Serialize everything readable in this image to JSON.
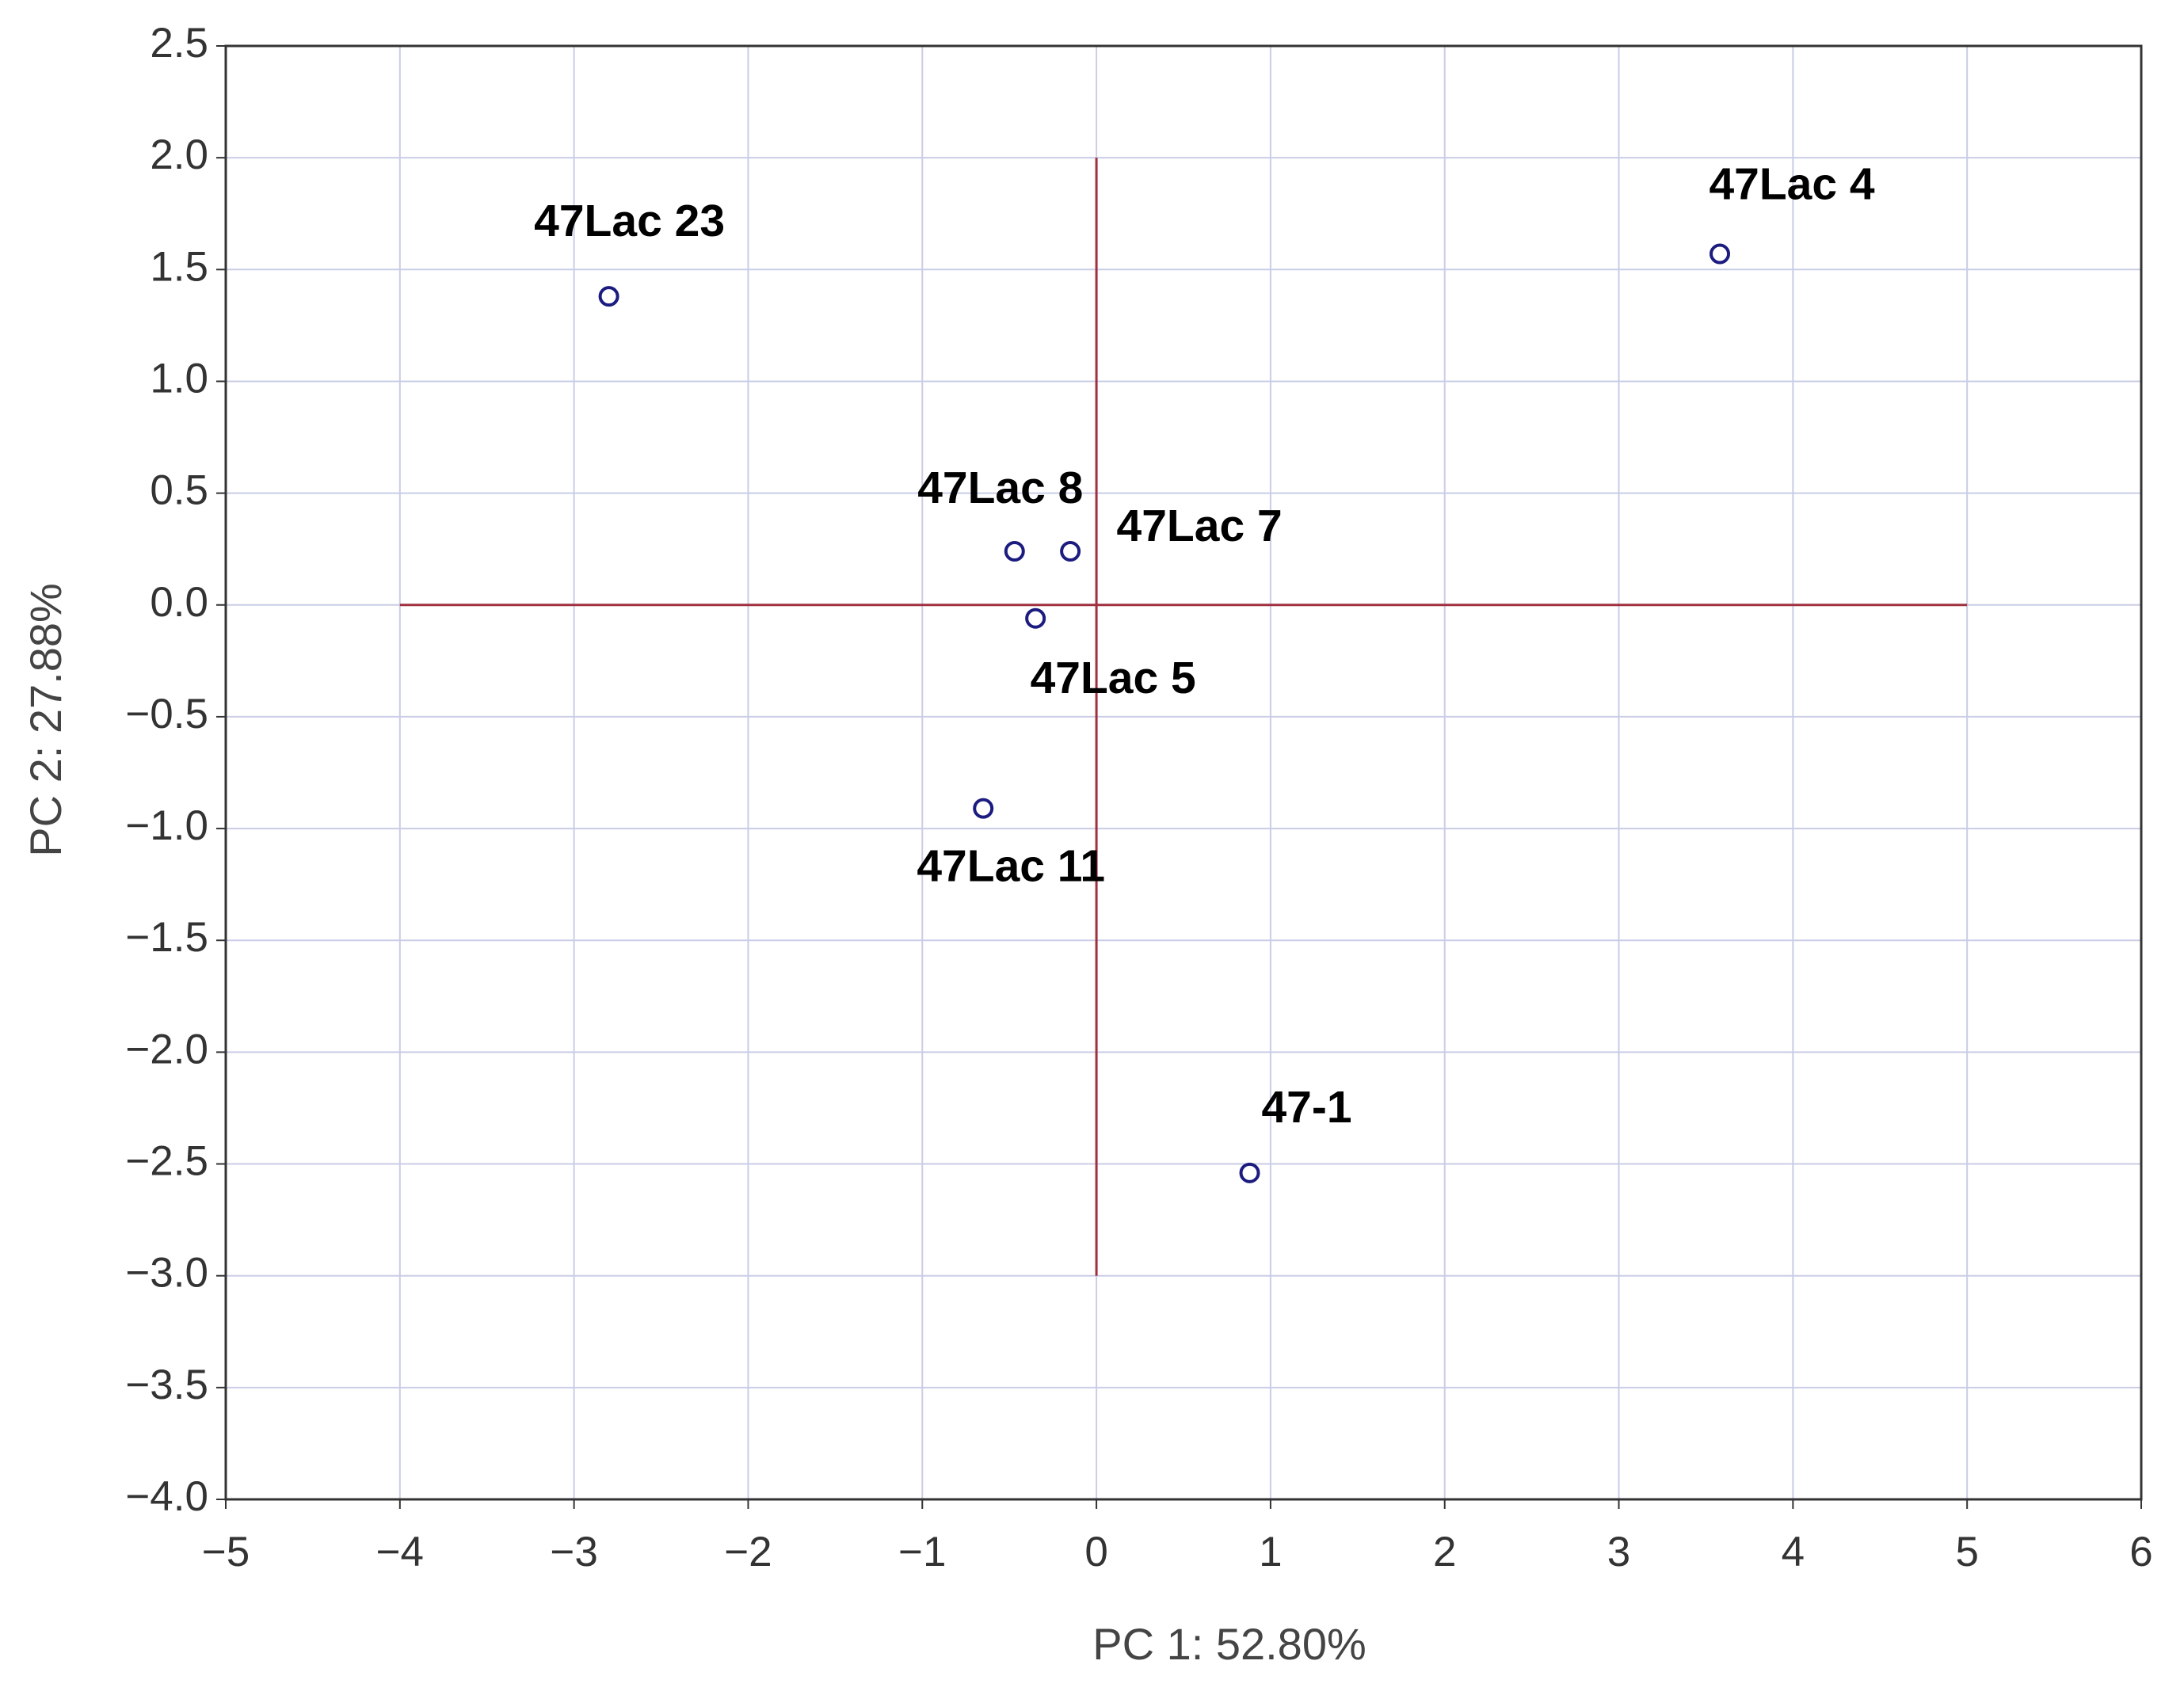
{
  "chart_data": {
    "type": "scatter",
    "x_label": "PC 1: 52.80%",
    "y_label": "PC 2: 27.88%",
    "x": [
      -2.8,
      3.58,
      -0.47,
      -0.15,
      -0.35,
      -0.65,
      0.88
    ],
    "values": [
      1.38,
      1.57,
      0.24,
      0.24,
      -0.06,
      -0.91,
      -2.54
    ],
    "point_labels": [
      "47Lac 23",
      "47Lac 4",
      "47Lac 8",
      "47Lac 7",
      "47Lac 5",
      "47Lac 11",
      "47-1"
    ],
    "color": "#1c1c80",
    "xlim": [
      -5,
      6
    ],
    "ylim": [
      -4,
      2.5
    ],
    "xticks": [
      {
        "value": -5,
        "label": "−5"
      },
      {
        "value": -4,
        "label": "−4"
      },
      {
        "value": -3,
        "label": "−3"
      },
      {
        "value": -2,
        "label": "−2"
      },
      {
        "value": -1,
        "label": "−1"
      },
      0,
      1,
      2,
      3,
      4,
      5,
      6
    ],
    "yticks": [
      2.5,
      {
        "value": 2,
        "label": "2.0"
      },
      1.5,
      {
        "value": 1,
        "label": "1.0"
      },
      0.5,
      {
        "value": 0,
        "label": "0.0"
      },
      {
        "value": -0.5,
        "label": "−0.5"
      },
      {
        "value": -1,
        "label": "−1.0"
      },
      {
        "value": -1.5,
        "label": "−1.5"
      },
      {
        "value": -2,
        "label": "−2.0"
      },
      {
        "value": -2.5,
        "label": "−2.5"
      },
      {
        "value": -3,
        "label": "−3.0"
      },
      {
        "value": -3.5,
        "label": "−3.5"
      },
      {
        "value": -4,
        "label": "−4.0"
      }
    ],
    "grid": true,
    "reference_lines": [
      {
        "y": 0,
        "x_from": -4,
        "x_to": 5,
        "color": "#a0303f"
      },
      {
        "x": 0,
        "y_from": -3,
        "y_to": 2,
        "color": "#a0303f"
      }
    ]
  }
}
